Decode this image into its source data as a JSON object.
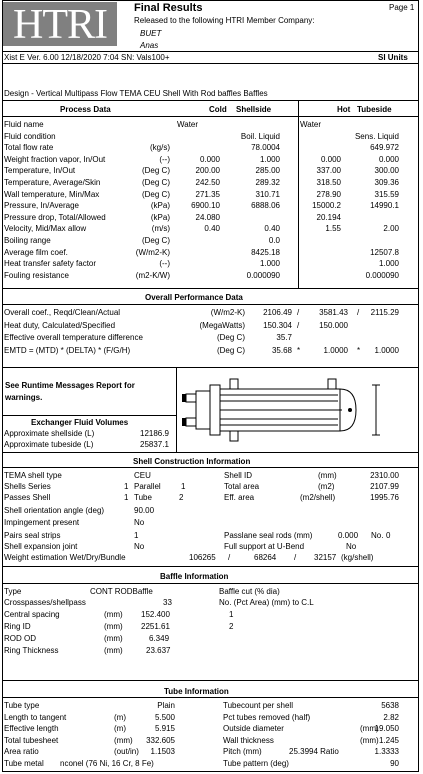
{
  "header": {
    "logo_text": "HTRI",
    "title": "Final Results",
    "page": "Page 1",
    "released_to": "Released to the following HTRI Member Company:",
    "company": "BUET",
    "user": "Anas",
    "version_line": "Xist E Ver. 6.00    12/18/2020  7:04  SN: Vals100+",
    "units": "SI Units",
    "design": "Design - Vertical Multipass Flow TEMA CEU Shell With Rod baffles Baffles"
  },
  "process": {
    "title": "Process Data",
    "cold": "Cold",
    "shellside": "Shellside",
    "hot": "Hot",
    "tubeside": "Tubeside",
    "rows": [
      {
        "label": "Fluid name",
        "unit": "",
        "s1": "Water",
        "s2": "",
        "t1": "Water",
        "t2": ""
      },
      {
        "label": "Fluid condition",
        "unit": "",
        "s1": "",
        "s2": "Boil. Liquid",
        "t1": "",
        "t2": "Sens. Liquid"
      },
      {
        "label": "Total flow rate",
        "unit": "(kg/s)",
        "s1": "",
        "s2": "78.0004",
        "t1": "",
        "t2": "649.972"
      },
      {
        "label": "Weight fraction vapor, In/Out",
        "unit": "(--)",
        "s1": "0.000",
        "s2": "1.000",
        "t1": "0.000",
        "t2": "0.000"
      },
      {
        "label": "Temperature, In/Out",
        "unit": "(Deg C)",
        "s1": "200.00",
        "s2": "285.00",
        "t1": "337.00",
        "t2": "300.00"
      },
      {
        "label": "Temperature, Average/Skin",
        "unit": "(Deg C)",
        "s1": "242.50",
        "s2": "289.32",
        "t1": "318.50",
        "t2": "309.36"
      },
      {
        "label": "Wall temperature, Min/Max",
        "unit": "(Deg C)",
        "s1": "271.35",
        "s2": "310.71",
        "t1": "278.90",
        "t2": "315.59"
      },
      {
        "label": "Pressure, In/Average",
        "unit": "(kPa)",
        "s1": "6900.10",
        "s2": "6888.06",
        "t1": "15000.2",
        "t2": "14990.1"
      },
      {
        "label": "Pressure drop, Total/Allowed",
        "unit": "(kPa)",
        "s1": "24.080",
        "s2": "",
        "t1": "20.194",
        "t2": ""
      },
      {
        "label": "Velocity, Mid/Max allow",
        "unit": "(m/s)",
        "s1": "0.40",
        "s2": "0.40",
        "t1": "1.55",
        "t2": "2.00"
      },
      {
        "label": "Boiling range",
        "unit": "(Deg C)",
        "s1": "",
        "s2": "0.0",
        "t1": "",
        "t2": ""
      },
      {
        "label": "Average film coef.",
        "unit": "(W/m2-K)",
        "s1": "",
        "s2": "8425.18",
        "t1": "",
        "t2": "12507.8"
      },
      {
        "label": "Heat transfer safety factor",
        "unit": "(--)",
        "s1": "",
        "s2": "1.000",
        "t1": "",
        "t2": "1.000"
      },
      {
        "label": "Fouling resistance",
        "unit": "(m2-K/W)",
        "s1": "",
        "s2": "0.000090",
        "t1": "",
        "t2": "0.000090"
      }
    ]
  },
  "overall": {
    "title": "Overall Performance Data",
    "rows": [
      {
        "label": "Overall coef., Reqd/Clean/Actual",
        "unit": "(W/m2-K)",
        "v1": "2106.49",
        "sep1": "/",
        "v2": "3581.43",
        "sep2": "/",
        "v3": "2115.29"
      },
      {
        "label": "Heat duty, Calculated/Specified",
        "unit": "(MegaWatts)",
        "v1": "150.304",
        "sep1": "/",
        "v2": "150.000",
        "sep2": "",
        "v3": ""
      },
      {
        "label": "Effective overall temperature difference",
        "unit": "(Deg C)",
        "v1": "35.7",
        "sep1": "",
        "v2": "",
        "sep2": "",
        "v3": ""
      },
      {
        "label": "EMTD = (MTD) * (DELTA) * (F/G/H)",
        "unit": "(Deg C)",
        "v1": "35.68",
        "sep1": "*",
        "v2": "1.0000",
        "sep2": "*",
        "v3": "1.0000"
      }
    ]
  },
  "runtime": {
    "message": "See Runtime Messages Report for warnings."
  },
  "volumes": {
    "title": "Exchanger Fluid Volumes",
    "rows": [
      {
        "label": "Approximate shellside (L)",
        "value": "12186.9"
      },
      {
        "label": "Approximate tubeside (L)",
        "value": "25837.1"
      }
    ]
  },
  "shell": {
    "title": "Shell Construction Information",
    "tema_label": "TEMA shell type",
    "tema_value": "CEU",
    "shell_id_label": "Shell ID",
    "shell_id_unit": "(mm)",
    "shell_id_value": "2310.00",
    "series_label": "Shells Series",
    "series_value": "1",
    "parallel_label": "Parallel",
    "parallel_value": "1",
    "total_area_label": "Total area",
    "total_area_unit": "(m2)",
    "total_area_value": "2107.99",
    "passes_label": "Passes Shell",
    "passes_value": "1",
    "tube_label": "Tube",
    "tube_value": "2",
    "eff_area_label": "Eff. area",
    "eff_area_unit": "(m2/shell)",
    "eff_area_value": "1995.76",
    "orient_label": "Shell orientation angle (deg)",
    "orient_value": "90.00",
    "impinge_label": "Impingement present",
    "impinge_value": "No",
    "pairs_label": "Pairs seal strips",
    "pairs_value": "1",
    "passlane_label": "Passlane seal rods (mm)",
    "passlane_value": "0.000",
    "passlane_no_label": "No.",
    "passlane_no_value": "0",
    "expansion_label": "Shell expansion joint",
    "expansion_value": "No",
    "support_label": "Full support at U-Bend",
    "support_value": "No",
    "weight_label": "Weight estimation  Wet/Dry/Bundle",
    "weight_v1": "106265",
    "weight_v2": "68264",
    "weight_v3": "32157",
    "weight_unit": "(kg/shell)"
  },
  "baffle": {
    "title": "Baffle Information",
    "type_label": "Type",
    "type_value": "CONT  RODBaffle",
    "cut_label": "Baffle cut (% dia)",
    "cps_label": "Crosspasses/shellpass",
    "cps_value": "33",
    "cut_head": "No. (Pct Area)  (mm) to C.L",
    "spacing_label": "Central spacing",
    "spacing_unit": "(mm)",
    "spacing_value": "152.400",
    "cut_1": "1",
    "ring_id_label": "Ring ID",
    "ring_id_unit": "(mm)",
    "ring_id_value": "2251.61",
    "cut_2": "2",
    "rod_od_label": "ROD OD",
    "rod_od_unit": "(mm)",
    "rod_od_value": "6.349",
    "ring_th_label": "Ring Thickness",
    "ring_th_unit": "(mm)",
    "ring_th_value": "23.637"
  },
  "tube": {
    "title": "Tube Information",
    "rows": [
      {
        "l": "Tube type",
        "lu": "",
        "lv": "Plain",
        "r": "Tubecount per shell",
        "ru": "",
        "rv": "5638"
      },
      {
        "l": "Length to tangent",
        "lu": "(m)",
        "lv": "5.500",
        "r": "Pct tubes removed (half)",
        "ru": "",
        "rv": "2.82"
      },
      {
        "l": "Effective length",
        "lu": "(m)",
        "lv": "5.915",
        "r": "Outside diameter",
        "ru": "(mm)",
        "rv": "19.050"
      },
      {
        "l": "Total tubesheet",
        "lu": "(mm)",
        "lv": "332.605",
        "r": "Wall thickness",
        "ru": "(mm)",
        "rv": "1.245"
      },
      {
        "l": "Area ratio",
        "lu": "(out/in)",
        "lv": "1.1503",
        "r": "Pitch (mm)",
        "ru": "25.3994  Ratio",
        "rv": "1.3333"
      },
      {
        "l": "Tube metal",
        "lu": "nconel (76 Ni, 16 Cr, 8 Fe)",
        "lv": "",
        "r": "Tube pattern (deg)",
        "ru": "",
        "rv": "90"
      }
    ]
  }
}
